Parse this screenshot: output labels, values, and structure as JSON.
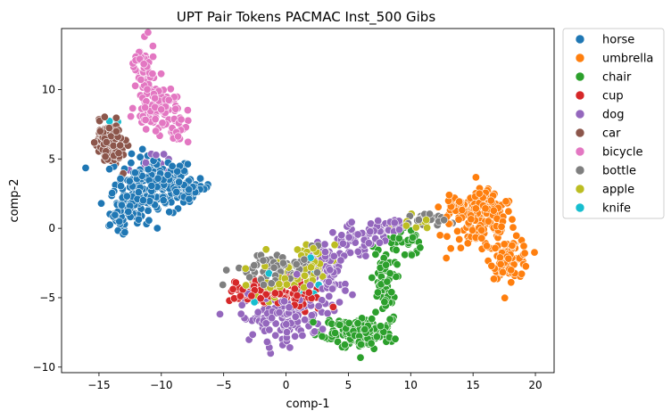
{
  "chart_data": {
    "type": "scatter",
    "title": "UPT Pair Tokens PACMAC Inst_500 Gibs",
    "xlabel": "comp-1",
    "ylabel": "comp-2",
    "xlim": [
      -18,
      21.5
    ],
    "ylim": [
      -10.4,
      14.4
    ],
    "xticks": [
      -15,
      -10,
      -5,
      0,
      5,
      10,
      15,
      20
    ],
    "yticks": [
      -10,
      -5,
      0,
      5,
      10
    ],
    "grid": false,
    "legend_position": "outside-right-top",
    "series": [
      {
        "name": "horse",
        "color": "#1f77b4",
        "clusters": [
          {
            "x": -10.5,
            "y": 3.2,
            "sx": 1.6,
            "sy": 1.0,
            "n": 190
          },
          {
            "x": -12.5,
            "y": 1.6,
            "sx": 0.8,
            "sy": 0.8,
            "n": 60
          },
          {
            "x": -7.5,
            "y": 2.9,
            "sx": 0.7,
            "sy": 0.3,
            "n": 40
          },
          {
            "x": -13.4,
            "y": 0.3,
            "sx": 0.5,
            "sy": 0.4,
            "n": 15
          }
        ]
      },
      {
        "name": "umbrella",
        "color": "#ff7f0e",
        "clusters": [
          {
            "x": 15.8,
            "y": 0.4,
            "sx": 1.3,
            "sy": 1.0,
            "n": 140
          },
          {
            "x": 18.0,
            "y": -2.2,
            "sx": 0.8,
            "sy": 0.7,
            "n": 80
          },
          {
            "x": 13.6,
            "y": 1.5,
            "sx": 0.6,
            "sy": 0.4,
            "n": 30
          },
          {
            "x": 16.0,
            "y": 2.3,
            "sx": 0.3,
            "sy": 0.4,
            "n": 12
          }
        ]
      },
      {
        "name": "chair",
        "color": "#2ca02c",
        "clusters": [
          {
            "x": 6.2,
            "y": -7.6,
            "sx": 1.2,
            "sy": 0.6,
            "n": 130
          },
          {
            "x": 4.8,
            "y": -7.2,
            "sx": 1.0,
            "sy": 0.4,
            "n": 40
          },
          {
            "x": 7.8,
            "y": -4.0,
            "sx": 0.5,
            "sy": 1.4,
            "n": 60
          },
          {
            "x": 9.6,
            "y": -1.0,
            "sx": 0.6,
            "sy": 0.6,
            "n": 25
          }
        ]
      },
      {
        "name": "cup",
        "color": "#d62728",
        "clusters": [
          {
            "x": -1.0,
            "y": -4.6,
            "sx": 1.5,
            "sy": 0.5,
            "n": 60
          },
          {
            "x": 1.5,
            "y": -5.2,
            "sx": 1.0,
            "sy": 0.5,
            "n": 25
          },
          {
            "x": -3.2,
            "y": -4.7,
            "sx": 0.6,
            "sy": 0.4,
            "n": 15
          }
        ]
      },
      {
        "name": "dog",
        "color": "#9467bd",
        "clusters": [
          {
            "x": -0.5,
            "y": -6.5,
            "sx": 1.6,
            "sy": 0.8,
            "n": 110
          },
          {
            "x": 3.5,
            "y": -3.5,
            "sx": 0.7,
            "sy": 1.2,
            "n": 70
          },
          {
            "x": 5.5,
            "y": -1.0,
            "sx": 1.0,
            "sy": 0.6,
            "n": 50
          },
          {
            "x": 7.8,
            "y": 0.0,
            "sx": 0.8,
            "sy": 0.4,
            "n": 30
          },
          {
            "x": -11.0,
            "y": 4.8,
            "sx": 0.8,
            "sy": 0.5,
            "n": 10
          }
        ]
      },
      {
        "name": "car",
        "color": "#8c564b",
        "clusters": [
          {
            "x": -14.3,
            "y": 6.4,
            "sx": 0.6,
            "sy": 0.6,
            "n": 75
          },
          {
            "x": -13.5,
            "y": 5.2,
            "sx": 0.4,
            "sy": 0.5,
            "n": 20
          }
        ]
      },
      {
        "name": "bicycle",
        "color": "#e377c2",
        "clusters": [
          {
            "x": -11.5,
            "y": 11.5,
            "sx": 0.5,
            "sy": 0.9,
            "n": 50
          },
          {
            "x": -10.5,
            "y": 8.8,
            "sx": 0.8,
            "sy": 0.8,
            "n": 80
          },
          {
            "x": -8.8,
            "y": 7.5,
            "sx": 0.5,
            "sy": 0.7,
            "n": 30
          }
        ]
      },
      {
        "name": "bottle",
        "color": "#7f7f7f",
        "clusters": [
          {
            "x": -1.5,
            "y": -3.0,
            "sx": 1.4,
            "sy": 0.7,
            "n": 60
          },
          {
            "x": 1.5,
            "y": -2.5,
            "sx": 0.8,
            "sy": 0.6,
            "n": 20
          },
          {
            "x": 11.0,
            "y": 0.5,
            "sx": 0.9,
            "sy": 0.3,
            "n": 20
          }
        ]
      },
      {
        "name": "apple",
        "color": "#bcbd22",
        "clusters": [
          {
            "x": 1.5,
            "y": -2.8,
            "sx": 1.2,
            "sy": 0.8,
            "n": 50
          },
          {
            "x": -0.8,
            "y": -4.0,
            "sx": 1.0,
            "sy": 0.6,
            "n": 30
          },
          {
            "x": 10.5,
            "y": 0.6,
            "sx": 0.6,
            "sy": 0.3,
            "n": 10
          }
        ]
      },
      {
        "name": "knife",
        "color": "#17becf",
        "clusters": [
          {
            "x": 0.5,
            "y": -4.0,
            "sx": 1.5,
            "sy": 1.0,
            "n": 8
          },
          {
            "x": -13.5,
            "y": 7.5,
            "sx": 0.4,
            "sy": 0.3,
            "n": 2
          }
        ]
      }
    ]
  }
}
